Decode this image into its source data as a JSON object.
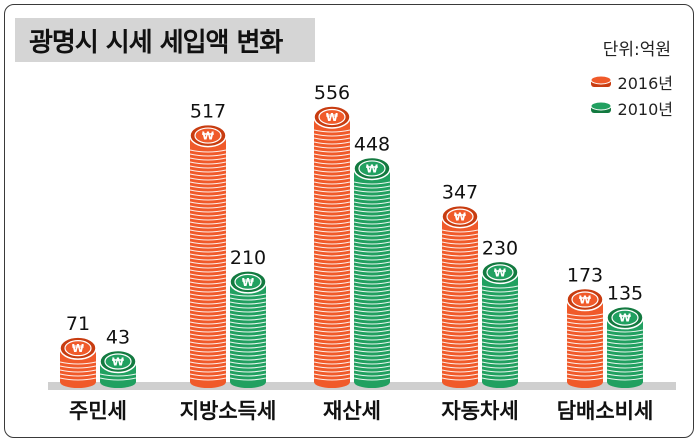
{
  "title": "광명시 시세 세입액 변화",
  "unit": "단위:억원",
  "colors": {
    "2016": "#f05a2a",
    "2016_dark": "#c83c10",
    "2010": "#21a060",
    "2010_dark": "#137a40",
    "baseline": "#cfcfcf"
  },
  "chart_data": {
    "type": "bar",
    "categories": [
      "주민세",
      "지방소득세",
      "재산세",
      "자동차세",
      "담배소비세"
    ],
    "series": [
      {
        "name": "2016년",
        "values": [
          71,
          517,
          556,
          347,
          173
        ]
      },
      {
        "name": "2010년",
        "values": [
          43,
          210,
          448,
          230,
          135
        ]
      }
    ],
    "ylim": [
      0,
      600
    ]
  }
}
